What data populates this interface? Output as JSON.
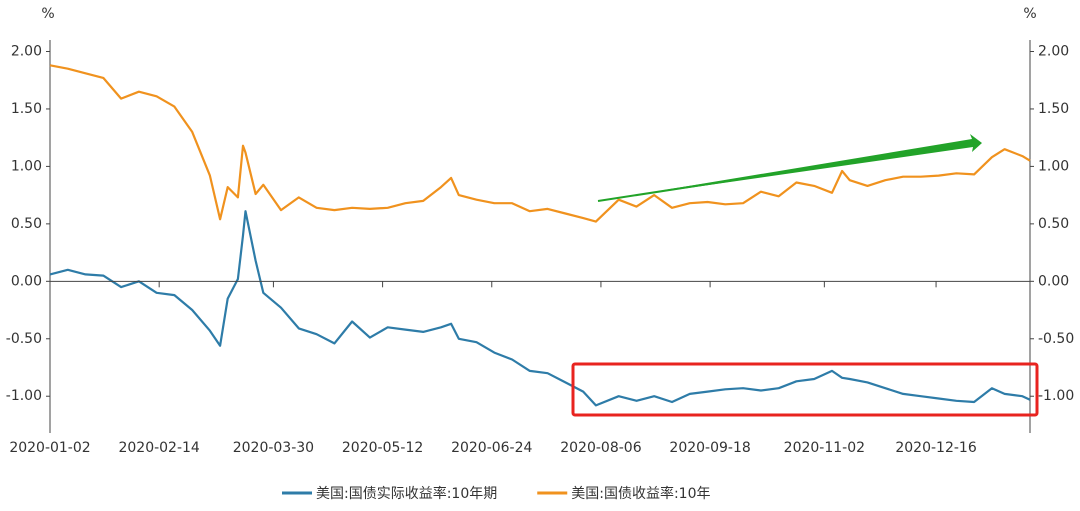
{
  "chart_data": {
    "type": "line",
    "ylabel": "%",
    "y2label": "%",
    "x": [
      "2020-01-02",
      "2020-01-09",
      "2020-01-16",
      "2020-01-23",
      "2020-01-30",
      "2020-02-06",
      "2020-02-13",
      "2020-02-20",
      "2020-02-27",
      "2020-03-05",
      "2020-03-09",
      "2020-03-12",
      "2020-03-16",
      "2020-03-18",
      "2020-03-19",
      "2020-03-23",
      "2020-03-26",
      "2020-04-02",
      "2020-04-09",
      "2020-04-16",
      "2020-04-23",
      "2020-04-30",
      "2020-05-07",
      "2020-05-14",
      "2020-05-21",
      "2020-05-28",
      "2020-06-04",
      "2020-06-08",
      "2020-06-11",
      "2020-06-18",
      "2020-06-25",
      "2020-07-02",
      "2020-07-09",
      "2020-07-16",
      "2020-07-23",
      "2020-07-30",
      "2020-08-04",
      "2020-08-13",
      "2020-08-20",
      "2020-08-27",
      "2020-09-03",
      "2020-09-10",
      "2020-09-17",
      "2020-09-24",
      "2020-10-01",
      "2020-10-08",
      "2020-10-15",
      "2020-10-22",
      "2020-10-29",
      "2020-11-05",
      "2020-11-09",
      "2020-11-12",
      "2020-11-19",
      "2020-11-26",
      "2020-12-03",
      "2020-12-10",
      "2020-12-17",
      "2020-12-24",
      "2020-12-31",
      "2021-01-07",
      "2021-01-12",
      "2021-01-19",
      "2021-01-22"
    ],
    "xlim": [
      "2020-01-02",
      "2021-01-22"
    ],
    "xticks": [
      "2020-01-02",
      "2020-02-14",
      "2020-03-30",
      "2020-05-12",
      "2020-06-24",
      "2020-08-06",
      "2020-09-18",
      "2020-11-02",
      "2020-12-16"
    ],
    "ylim": [
      -1.32,
      2.1
    ],
    "yticks": [
      {
        "value": 2,
        "label": "2.00"
      },
      {
        "value": 1.5,
        "label": "1.50"
      },
      {
        "value": 1,
        "label": "1.00"
      },
      {
        "value": 0.5,
        "label": "0.50"
      },
      {
        "value": 0,
        "label": "0.00"
      },
      {
        "value": -0.5,
        "label": "-0.50"
      },
      {
        "value": -1,
        "label": "-1.00"
      }
    ],
    "y2lim": [
      -1.32,
      2.1
    ],
    "y2ticks": [
      {
        "value": 2,
        "label": "2.00"
      },
      {
        "value": 1.5,
        "label": "1.50"
      },
      {
        "value": 1,
        "label": "1.00"
      },
      {
        "value": 0.5,
        "label": "0.50"
      },
      {
        "value": 0,
        "label": "0.00"
      },
      {
        "value": -0.5,
        "label": "-0.50"
      },
      {
        "value": -1,
        "label": "-1.00"
      }
    ],
    "series": [
      {
        "name": "美国:国债实际收益率:10年期",
        "color": "#2e7ca8",
        "values": [
          0.06,
          0.1,
          0.06,
          0.05,
          -0.05,
          0.0,
          -0.1,
          -0.12,
          -0.25,
          -0.43,
          -0.56,
          -0.15,
          0.02,
          0.4,
          0.61,
          0.18,
          -0.1,
          -0.23,
          -0.41,
          -0.46,
          -0.54,
          -0.35,
          -0.49,
          -0.4,
          -0.42,
          -0.44,
          -0.4,
          -0.37,
          -0.5,
          -0.53,
          -0.62,
          -0.68,
          -0.78,
          -0.8,
          -0.88,
          -0.96,
          -1.08,
          -1.0,
          -1.04,
          -1.0,
          -1.05,
          -0.98,
          -0.96,
          -0.94,
          -0.93,
          -0.95,
          -0.93,
          -0.87,
          -0.85,
          -0.78,
          -0.84,
          -0.85,
          -0.88,
          -0.93,
          -0.98,
          -1.0,
          -1.02,
          -1.04,
          -1.05,
          -0.93,
          -0.98,
          -1.0,
          -1.03
        ]
      },
      {
        "name": "美国:国债收益率:10年",
        "color": "#f0921e",
        "axis": "y2",
        "values": [
          1.88,
          1.85,
          1.81,
          1.77,
          1.59,
          1.65,
          1.61,
          1.52,
          1.3,
          0.92,
          0.54,
          0.82,
          0.73,
          1.18,
          1.12,
          0.76,
          0.84,
          0.62,
          0.73,
          0.64,
          0.62,
          0.64,
          0.63,
          0.64,
          0.68,
          0.7,
          0.82,
          0.9,
          0.75,
          0.71,
          0.68,
          0.68,
          0.61,
          0.63,
          0.59,
          0.55,
          0.52,
          0.71,
          0.65,
          0.75,
          0.64,
          0.68,
          0.69,
          0.67,
          0.68,
          0.78,
          0.74,
          0.86,
          0.83,
          0.77,
          0.96,
          0.88,
          0.83,
          0.88,
          0.91,
          0.91,
          0.92,
          0.94,
          0.93,
          1.08,
          1.15,
          1.09,
          1.05
        ]
      }
    ],
    "legend": "bottom"
  }
}
